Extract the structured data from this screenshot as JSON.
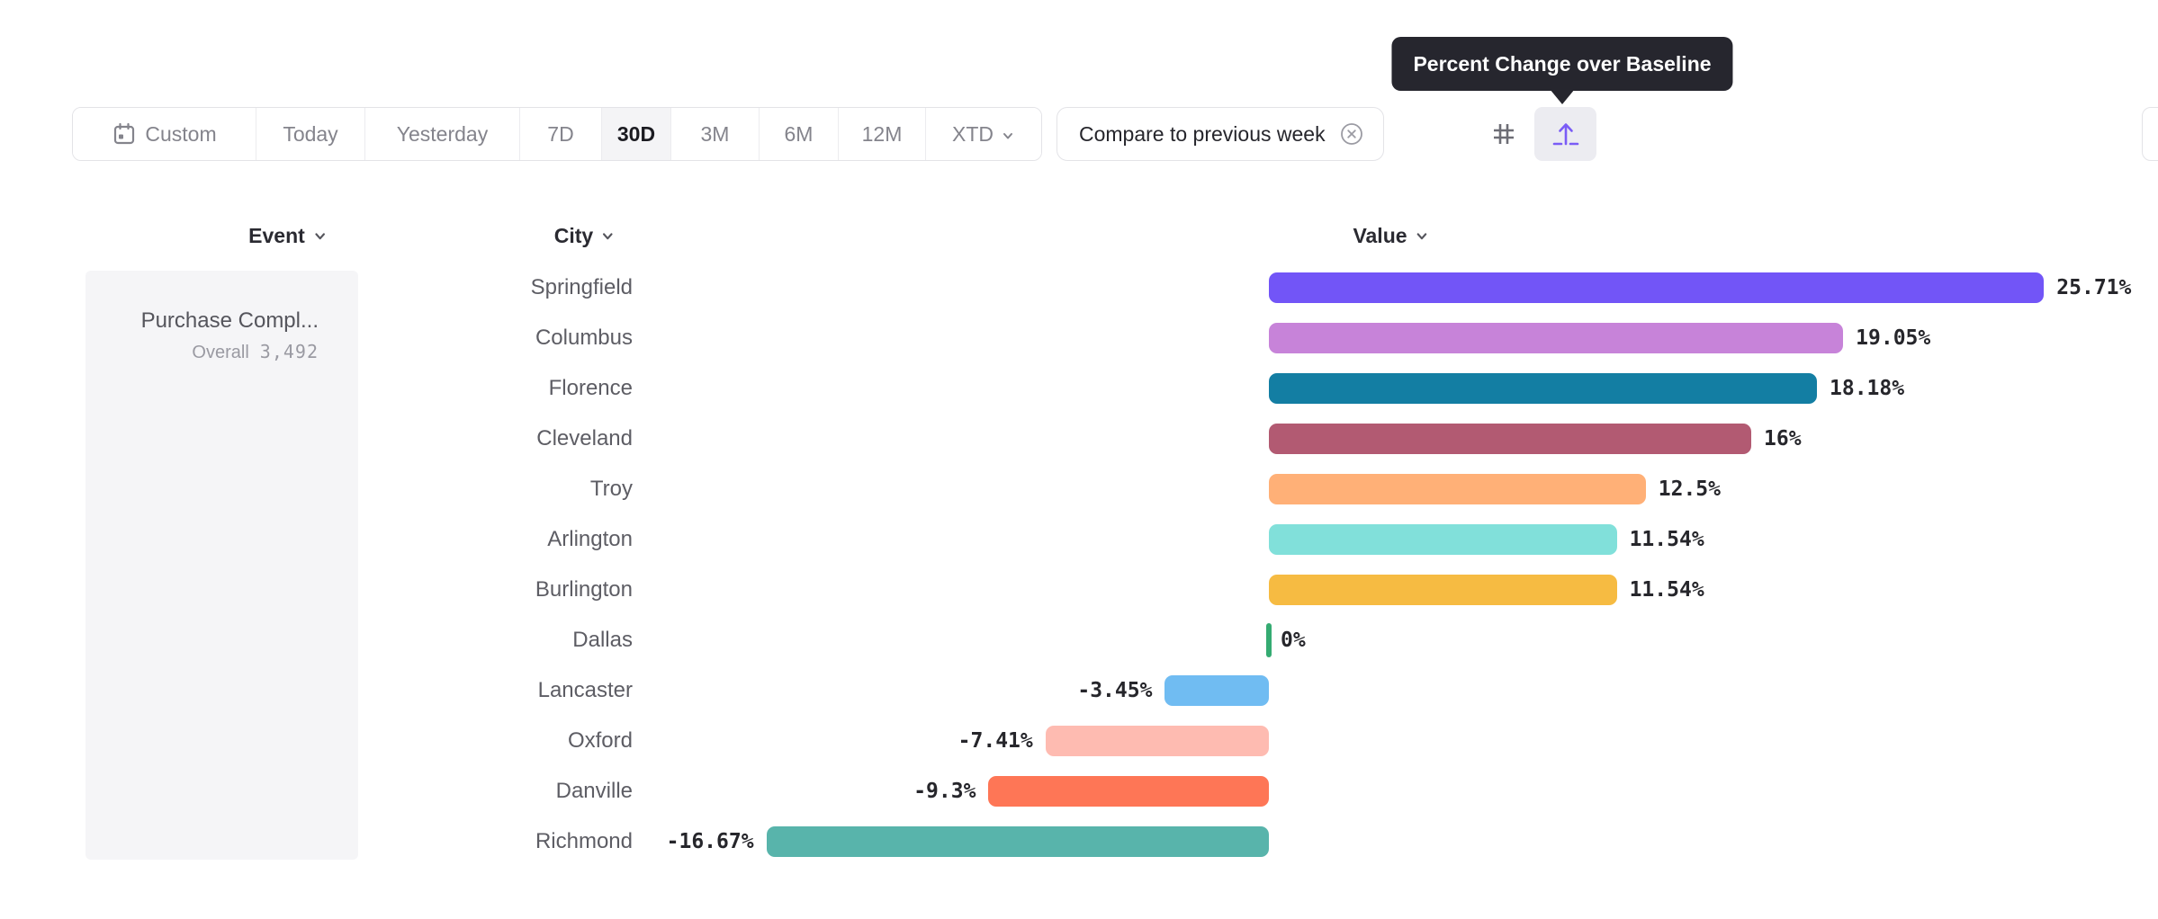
{
  "toolbar": {
    "items": [
      {
        "label": "Custom",
        "icon": "calendar"
      },
      {
        "label": "Today"
      },
      {
        "label": "Yesterday"
      },
      {
        "label": "7D"
      },
      {
        "label": "30D",
        "selected": true
      },
      {
        "label": "3M"
      },
      {
        "label": "6M"
      },
      {
        "label": "12M"
      },
      {
        "label": "XTD",
        "chevron": true
      }
    ]
  },
  "compare": {
    "label": "Compare to previous week",
    "clear_icon": "x-circle-icon"
  },
  "view_toggle": {
    "buttons": [
      {
        "name": "grid-hash-icon",
        "selected": false
      },
      {
        "name": "baseline-arrow-icon",
        "selected": true
      }
    ],
    "accent_color": "#7a5cf6"
  },
  "tooltip": {
    "text": "Percent Change over Baseline",
    "bg": "#26262e"
  },
  "columns": {
    "event": "Event",
    "city": "City",
    "value": "Value"
  },
  "event_panel": {
    "event_name": "Purchase Compl...",
    "metric_label": "Overall",
    "metric_value": "3,492"
  },
  "chart_data": {
    "type": "bar",
    "orientation": "horizontal",
    "unit": "%",
    "baseline": 0,
    "series_label": "Percent Change over Baseline",
    "categories": [
      "Springfield",
      "Columbus",
      "Florence",
      "Cleveland",
      "Troy",
      "Arlington",
      "Burlington",
      "Dallas",
      "Lancaster",
      "Oxford",
      "Danville",
      "Richmond"
    ],
    "values": [
      25.71,
      19.05,
      18.18,
      16,
      12.5,
      11.54,
      11.54,
      0,
      -3.45,
      -7.41,
      -9.3,
      -16.67
    ],
    "rows": [
      {
        "city": "Springfield",
        "value": 25.71,
        "label": "25.71%",
        "color": "#7255f7"
      },
      {
        "city": "Columbus",
        "value": 19.05,
        "label": "19.05%",
        "color": "#c783d9"
      },
      {
        "city": "Florence",
        "value": 18.18,
        "label": "18.18%",
        "color": "#137ea3"
      },
      {
        "city": "Cleveland",
        "value": 16,
        "label": "16%",
        "color": "#b25a72"
      },
      {
        "city": "Troy",
        "value": 12.5,
        "label": "12.5%",
        "color": "#ffb077"
      },
      {
        "city": "Arlington",
        "value": 11.54,
        "label": "11.54%",
        "color": "#81e0da"
      },
      {
        "city": "Burlington",
        "value": 11.54,
        "label": "11.54%",
        "color": "#f6bb42"
      },
      {
        "city": "Dallas",
        "value": 0,
        "label": "0%",
        "color": "#35ab72"
      },
      {
        "city": "Lancaster",
        "value": -3.45,
        "label": "-3.45%",
        "color": "#70bcf2"
      },
      {
        "city": "Oxford",
        "value": -7.41,
        "label": "-7.41%",
        "color": "#febbb1"
      },
      {
        "city": "Danville",
        "value": -9.3,
        "label": "-9.3%",
        "color": "#fe7656"
      },
      {
        "city": "Richmond",
        "value": -16.67,
        "label": "-16.67%",
        "color": "#58b4ab"
      }
    ]
  }
}
